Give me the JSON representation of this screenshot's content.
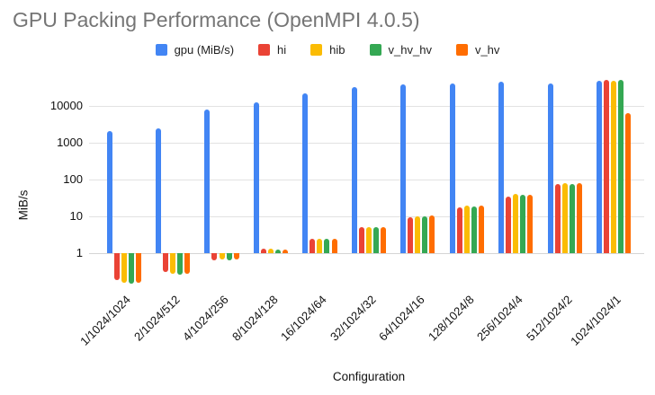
{
  "title": "GPU Packing Performance (OpenMPI 4.0.5)",
  "axes": {
    "x_title": "Configuration",
    "y_title": "MiB/s"
  },
  "chart_data": {
    "type": "bar",
    "title": "GPU Packing Performance (OpenMPI 4.0.5)",
    "xlabel": "Configuration",
    "ylabel": "MiB/s",
    "y_scale": "log",
    "ylim": [
      0.1,
      100000
    ],
    "y_ticks": [
      1,
      10,
      100,
      1000,
      10000
    ],
    "grid": true,
    "legend_position": "top",
    "categories": [
      "1/1024/1024",
      "2/1024/512",
      "4/1024/256",
      "8/1024/128",
      "16/1024/64",
      "32/1024/32",
      "64/1024/16",
      "128/1024/8",
      "256/1024/4",
      "512/1024/2",
      "1024/1024/1"
    ],
    "series": [
      {
        "name": "gpu (MiB/s)",
        "color": "#4285F4",
        "values": [
          2100,
          2500,
          7900,
          12200,
          22000,
          32000,
          38000,
          40500,
          45000,
          41000,
          48000
        ]
      },
      {
        "name": "hi",
        "color": "#EA4335",
        "values": [
          0.19,
          0.3,
          0.64,
          1.3,
          2.4,
          5.0,
          9.4,
          18,
          35,
          75,
          51000
        ]
      },
      {
        "name": "hib",
        "color": "#FBBC04",
        "values": [
          0.16,
          0.27,
          0.66,
          1.3,
          2.5,
          5.0,
          10.1,
          20,
          41,
          80,
          49500
        ]
      },
      {
        "name": "v_hv_hv",
        "color": "#34A853",
        "values": [
          0.15,
          0.26,
          0.64,
          1.25,
          2.4,
          5.0,
          9.8,
          19,
          38,
          74,
          52000
        ]
      },
      {
        "name": "v_hv",
        "color": "#FF6D01",
        "values": [
          0.16,
          0.28,
          0.68,
          1.25,
          2.5,
          5.1,
          10.5,
          20,
          39,
          78,
          6300
        ]
      }
    ]
  }
}
